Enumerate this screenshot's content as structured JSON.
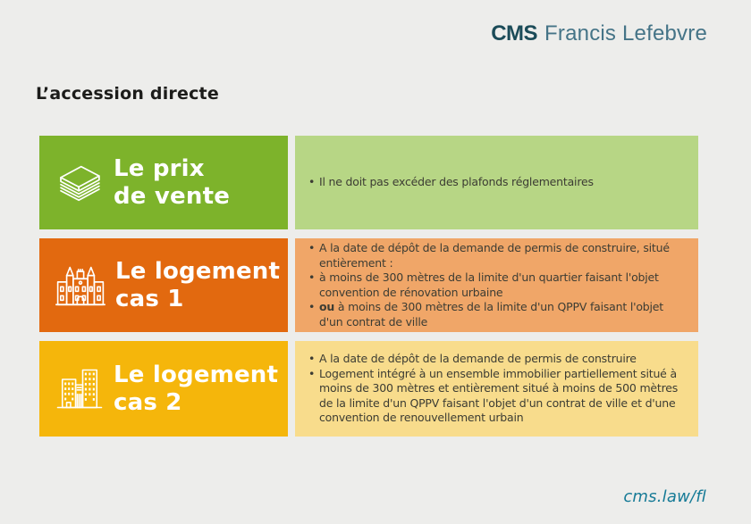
{
  "header": {
    "logo": {
      "mark": "CMS",
      "name": "Francis Lefebvre"
    }
  },
  "page_title": "L’accession directe",
  "footer": {
    "link": "cms.law/fl"
  },
  "colors": {
    "background": "#EDEDEB",
    "green": "#7DB32B",
    "green_light": "#B7D685",
    "orange": "#E2690F",
    "orange_light": "#F0A668",
    "yellow": "#F5B60B",
    "yellow_light": "#F8DC8C",
    "body_text": "#3C3C33",
    "logo_dark": "#1B4B58",
    "logo_light": "#457487",
    "footer_link": "#157A96"
  },
  "rows": [
    {
      "id": "prix-de-vente",
      "icon": "banknotes-stack-icon",
      "title_lines": [
        "Le prix",
        "de vente"
      ],
      "color": "#7DB32B",
      "panel_color": "#B7D685",
      "bullets": [
        [
          {
            "t": "Il ne doit pas excéder des plafonds réglementaires"
          }
        ]
      ]
    },
    {
      "id": "logement-cas-1",
      "icon": "classical-building-icon",
      "title_lines": [
        "Le logement",
        "cas 1"
      ],
      "color": "#E2690F",
      "panel_color": "#F0A668",
      "bullets": [
        [
          {
            "t": "A la date de dépôt de la demande de permis de construire, situé entièrement :"
          }
        ],
        [
          {
            "t": "à moins de 300 mètres de la limite d'un quartier faisant l'objet convention de rénovation urbaine"
          }
        ],
        [
          {
            "t": "ou",
            "b": true
          },
          {
            "t": " à moins de 300 mètres de la limite d'un QPPV faisant l'objet d'un contrat de ville"
          }
        ]
      ]
    },
    {
      "id": "logement-cas-2",
      "icon": "modern-buildings-icon",
      "title_lines": [
        "Le logement",
        "cas 2"
      ],
      "color": "#F5B60B",
      "panel_color": "#F8DC8C",
      "bullets": [
        [
          {
            "t": "A la date de dépôt de la demande de permis de construire"
          }
        ],
        [
          {
            "t": "Logement intégré à un ensemble immobilier partiellement situé à moins de 300 mètres et entièrement situé à moins de 500 mètres de la limite d'un QPPV faisant l'objet d'un contrat de ville et d'une convention de renouvellement urbain"
          }
        ]
      ]
    }
  ]
}
